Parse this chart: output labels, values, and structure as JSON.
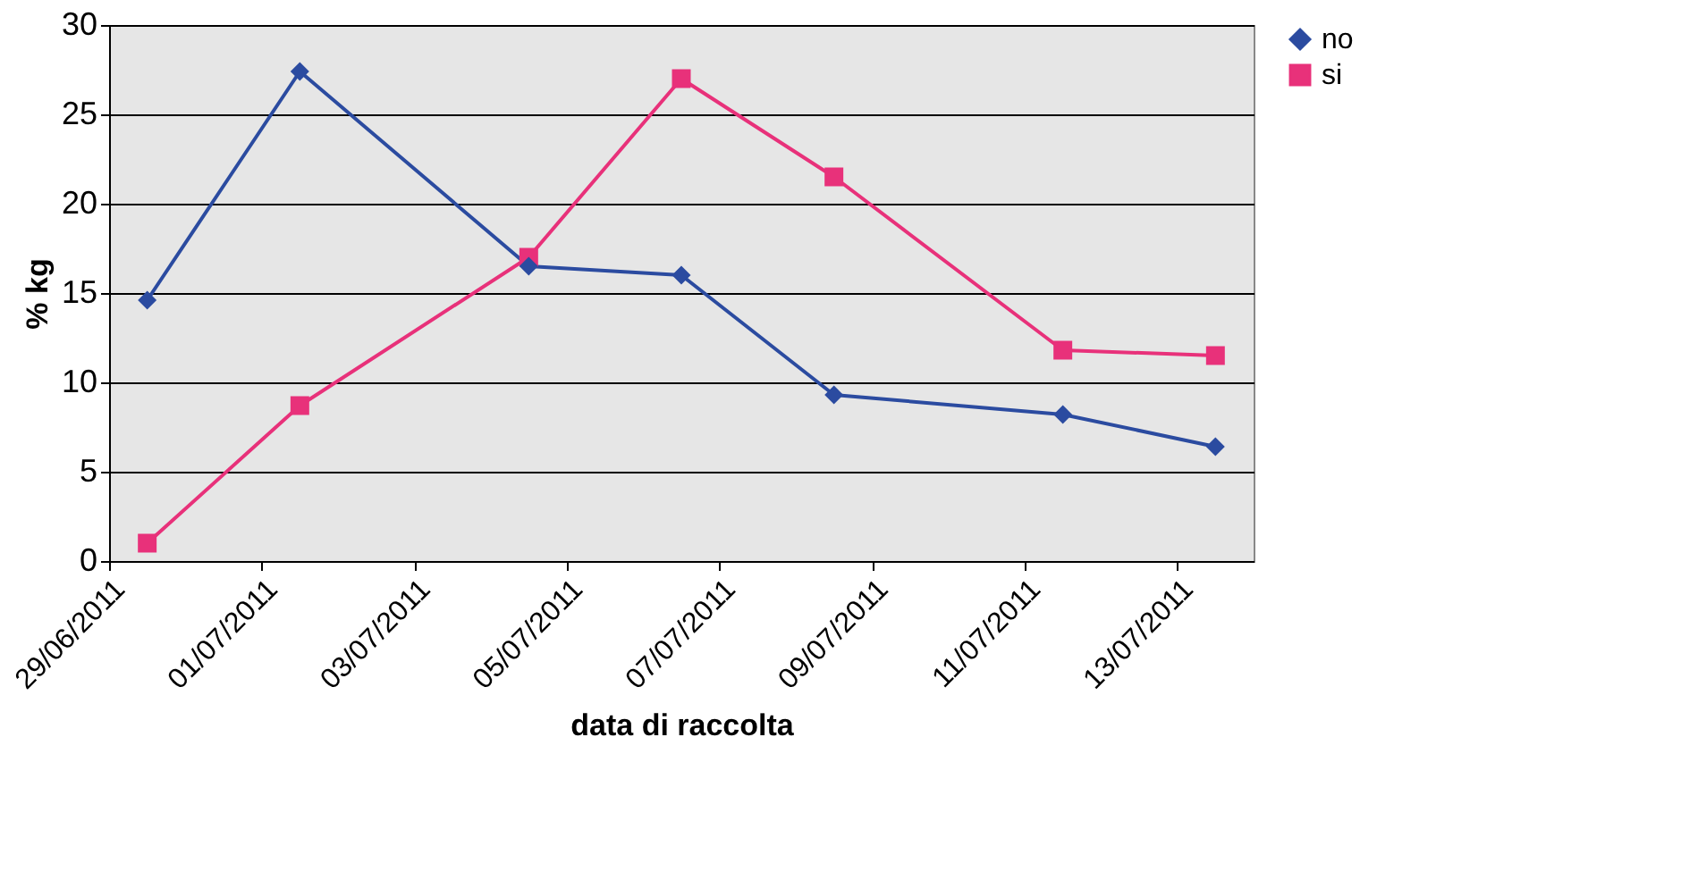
{
  "chart_data": {
    "type": "line",
    "xlabel": "data di raccolta",
    "ylabel": "% kg",
    "x": [
      "2011-06-29T12:00",
      "2011-07-01T12:00",
      "2011-07-04T12:00",
      "2011-07-06T12:00",
      "2011-07-08T12:00",
      "2011-07-11T12:00",
      "2011-07-13T12:00"
    ],
    "series": [
      {
        "name": "no",
        "color": "#2b4ba0",
        "marker": "diamond",
        "values": [
          14.6,
          27.4,
          16.5,
          16.0,
          9.3,
          8.2,
          6.4
        ]
      },
      {
        "name": "si",
        "color": "#e8317a",
        "marker": "square",
        "values": [
          1.0,
          8.7,
          17.0,
          27.0,
          21.5,
          11.8,
          11.5
        ]
      }
    ],
    "xlim": [
      "2011-06-29",
      "2011-07-14"
    ],
    "xticks": [
      {
        "value": "2011-06-29",
        "label": "29/06/2011"
      },
      {
        "value": "2011-07-01",
        "label": "01/07/2011"
      },
      {
        "value": "2011-07-03",
        "label": "03/07/2011"
      },
      {
        "value": "2011-07-05",
        "label": "05/07/2011"
      },
      {
        "value": "2011-07-07",
        "label": "07/07/2011"
      },
      {
        "value": "2011-07-09",
        "label": "09/07/2011"
      },
      {
        "value": "2011-07-11",
        "label": "11/07/2011"
      },
      {
        "value": "2011-07-13",
        "label": "13/07/2011"
      }
    ],
    "ylim": [
      0,
      30
    ],
    "yticks": [
      0,
      5,
      10,
      15,
      20,
      25,
      30
    ],
    "grid": "y",
    "legend": "right",
    "line_style": "solid"
  }
}
